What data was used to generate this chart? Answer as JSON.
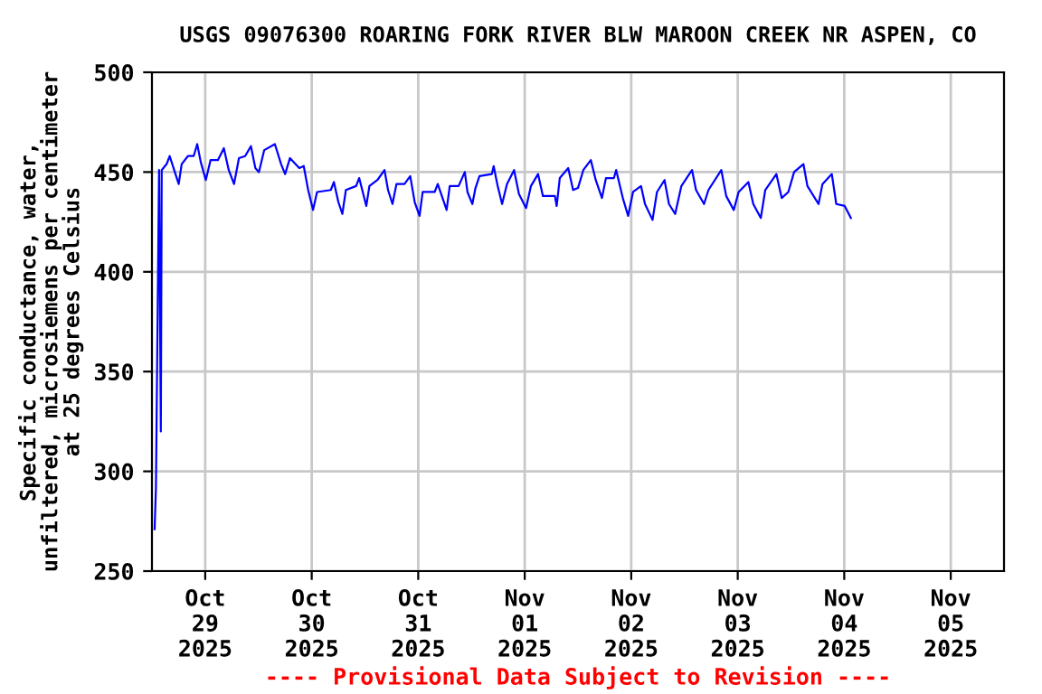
{
  "chart_data": {
    "type": "line",
    "title": "USGS 09076300 ROARING FORK RIVER BLW MAROON CREEK NR ASPEN, CO",
    "ylabel": "Specific conductance, water,\nunfiltered, microsiemens per centimeter\nat 25 degrees Celsius",
    "annotations": [
      "---- Provisional Data Subject to Revision ----"
    ],
    "xlim": [
      "2025-10-28T12:00",
      "2025-11-05T12:00"
    ],
    "ylim": [
      250,
      500
    ],
    "yticks": [
      250,
      300,
      350,
      400,
      450,
      500
    ],
    "xticks": [
      {
        "value": "2025-10-29",
        "label": "Oct\n29\n2025"
      },
      {
        "value": "2025-10-30",
        "label": "Oct\n30\n2025"
      },
      {
        "value": "2025-10-31",
        "label": "Oct\n31\n2025"
      },
      {
        "value": "2025-11-01",
        "label": "Nov\n01\n2025"
      },
      {
        "value": "2025-11-02",
        "label": "Nov\n02\n2025"
      },
      {
        "value": "2025-11-03",
        "label": "Nov\n03\n2025"
      },
      {
        "value": "2025-11-04",
        "label": "Nov\n04\n2025"
      },
      {
        "value": "2025-11-05",
        "label": "Nov\n05\n2025"
      }
    ],
    "grid": true,
    "series": [
      {
        "color": "#0000ff",
        "x": [
          "2025-10-28T12:36",
          "2025-10-28T12:54",
          "2025-10-28T13:18",
          "2025-10-28T13:36",
          "2025-10-28T14:00",
          "2025-10-28T14:12",
          "2025-10-28T15:18",
          "2025-10-28T16:00",
          "2025-10-28T17:00",
          "2025-10-28T18:02",
          "2025-10-28T18:42",
          "2025-10-28T20:06",
          "2025-10-28T21:24",
          "2025-10-28T22:12",
          "2025-10-28T23:00",
          "2025-10-29T00:08",
          "2025-10-29T01:12",
          "2025-10-29T02:51",
          "2025-10-29T04:12",
          "2025-10-29T05:18",
          "2025-10-29T06:30",
          "2025-10-29T07:36",
          "2025-10-29T09:00",
          "2025-10-29T10:18",
          "2025-10-29T11:18",
          "2025-10-29T12:06",
          "2025-10-29T13:18",
          "2025-10-29T15:42",
          "2025-10-29T17:06",
          "2025-10-29T18:00",
          "2025-10-29T19:06",
          "2025-10-29T21:12",
          "2025-10-29T22:12",
          "2025-10-29T23:12",
          "2025-10-30T00:18",
          "2025-10-30T01:12",
          "2025-10-30T04:18",
          "2025-10-30T05:00",
          "2025-10-30T06:00",
          "2025-10-30T06:54",
          "2025-10-30T07:42",
          "2025-10-30T10:00",
          "2025-10-30T10:42",
          "2025-10-30T12:18",
          "2025-10-30T13:00",
          "2025-10-30T14:48",
          "2025-10-30T16:24",
          "2025-10-30T17:12",
          "2025-10-30T18:12",
          "2025-10-30T19:06",
          "2025-10-30T20:54",
          "2025-10-30T22:12",
          "2025-10-30T23:12",
          "2025-10-31T00:18",
          "2025-10-31T01:00",
          "2025-10-31T03:42",
          "2025-10-31T04:24",
          "2025-10-31T06:24",
          "2025-10-31T07:06",
          "2025-10-31T09:06",
          "2025-10-31T10:30",
          "2025-10-31T11:06",
          "2025-10-31T12:12",
          "2025-10-31T12:54",
          "2025-10-31T13:48",
          "2025-10-31T16:36",
          "2025-10-31T17:00",
          "2025-10-31T17:54",
          "2025-10-31T18:54",
          "2025-10-31T20:00",
          "2025-10-31T21:36",
          "2025-10-31T22:42",
          "2025-11-01T00:18",
          "2025-11-01T01:24",
          "2025-11-01T03:00",
          "2025-11-01T04:06",
          "2025-11-01T06:48",
          "2025-11-01T07:12",
          "2025-11-01T07:54",
          "2025-11-01T09:48",
          "2025-11-01T10:54",
          "2025-11-01T12:00",
          "2025-11-01T13:12",
          "2025-11-01T14:54",
          "2025-11-01T16:00",
          "2025-11-01T17:24",
          "2025-11-01T18:18",
          "2025-11-01T20:06",
          "2025-11-01T20:36",
          "2025-11-01T22:06",
          "2025-11-01T23:18",
          "2025-11-02T00:24",
          "2025-11-02T02:12",
          "2025-11-02T03:06",
          "2025-11-02T04:48",
          "2025-11-02T05:48",
          "2025-11-02T07:30",
          "2025-11-02T08:30",
          "2025-11-02T09:54",
          "2025-11-02T11:18",
          "2025-11-02T13:42",
          "2025-11-02T14:36",
          "2025-11-02T16:24",
          "2025-11-02T17:24",
          "2025-11-02T20:18",
          "2025-11-02T21:24",
          "2025-11-02T23:06",
          "2025-11-03T00:12",
          "2025-11-03T02:24",
          "2025-11-03T03:30",
          "2025-11-03T05:12",
          "2025-11-03T06:12",
          "2025-11-03T08:42",
          "2025-11-03T09:54",
          "2025-11-03T11:24",
          "2025-11-03T12:42",
          "2025-11-03T14:48",
          "2025-11-03T15:42",
          "2025-11-03T18:12",
          "2025-11-03T19:06",
          "2025-11-03T21:12",
          "2025-11-03T22:12",
          "2025-11-04T00:06",
          "2025-11-04T01:30"
        ],
        "values": [
          271,
          292,
          384,
          451,
          320,
          451,
          454,
          458,
          451,
          444,
          454,
          458,
          458,
          464,
          455,
          446,
          456,
          456,
          462,
          451,
          444,
          457,
          458,
          463,
          452,
          450,
          461,
          464,
          454,
          449,
          457,
          452,
          453,
          441,
          431,
          440,
          441,
          445,
          435,
          429,
          441,
          443,
          447,
          433,
          443,
          446,
          451,
          441,
          434,
          444,
          444,
          448,
          435,
          428,
          440,
          440,
          444,
          431,
          443,
          443,
          450,
          440,
          434,
          442,
          448,
          449,
          453,
          443,
          434,
          444,
          451,
          439,
          432,
          443,
          449,
          438,
          438,
          433,
          447,
          452,
          441,
          442,
          451,
          456,
          446,
          437,
          447,
          447,
          451,
          437,
          428,
          440,
          443,
          434,
          426,
          440,
          446,
          434,
          429,
          443,
          451,
          441,
          434,
          441,
          451,
          438,
          431,
          440,
          445,
          434,
          427,
          441,
          449,
          437,
          440,
          450,
          454,
          443,
          434,
          444,
          449,
          434,
          433,
          427
        ]
      }
    ]
  }
}
